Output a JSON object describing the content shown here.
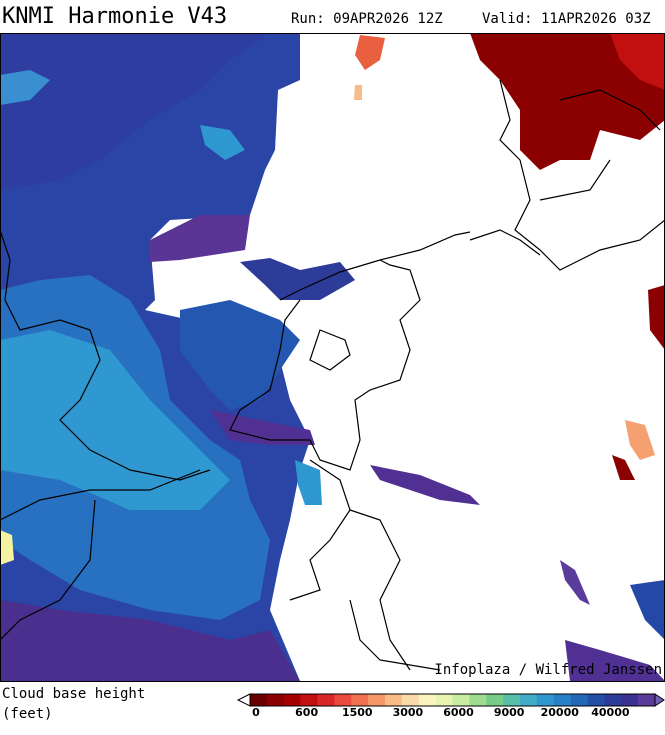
{
  "header": {
    "title": "KNMI Harmonie V43",
    "run": "Run: 09APR2026 12Z",
    "valid": "Valid: 11APR2026 03Z"
  },
  "map": {
    "credit": "Infoplaza / Wilfred Janssen"
  },
  "legend": {
    "title": "Cloud base height",
    "unit": "(feet)",
    "ticks": [
      0,
      600,
      1500,
      3000,
      6000,
      9000,
      20000,
      40000
    ],
    "colors": [
      "#6b0000",
      "#8b0000",
      "#a50000",
      "#c21010",
      "#d82828",
      "#e84a3c",
      "#f07050",
      "#f59868",
      "#f8bc88",
      "#fadaa8",
      "#fcf4c0",
      "#e8f4b0",
      "#c8eca0",
      "#a0dc90",
      "#78cc88",
      "#58c0a8",
      "#40acc8",
      "#3098d0",
      "#2880c8",
      "#2468b8",
      "#2250a8",
      "#2c3c98",
      "#3c3090",
      "#5a3c9c"
    ],
    "over_color": "#7060b8",
    "under_color": "#ffffff"
  }
}
